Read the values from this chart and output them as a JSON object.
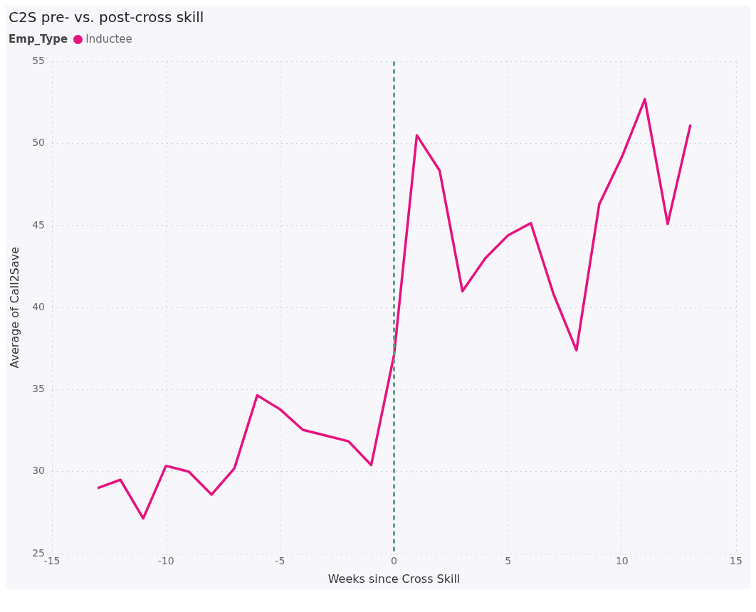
{
  "chart_data": {
    "type": "line",
    "title": "C2S pre- vs. post-cross skill",
    "xlabel": "Weeks since Cross Skill",
    "ylabel": "Average of Call2Save",
    "legend_title": "Emp_Type",
    "legend": "top left",
    "grid": true,
    "marker": "none",
    "line_style": "solid",
    "x": [
      -13,
      -12,
      -11,
      -10,
      -9,
      -8,
      -7,
      -6,
      -5,
      -4,
      -3,
      -2,
      -1,
      0,
      1,
      2,
      3,
      4,
      5,
      6,
      7,
      8,
      9,
      10,
      11,
      12,
      13
    ],
    "series": [
      {
        "name": "Inductee",
        "color": "#e6127f",
        "values": [
          29.0,
          29.5,
          27.15,
          30.35,
          30.0,
          28.6,
          30.2,
          34.65,
          33.8,
          32.55,
          32.2,
          31.85,
          30.4,
          37.1,
          50.5,
          48.35,
          41.0,
          43.0,
          44.4,
          45.15,
          40.8,
          37.4,
          46.3,
          49.2,
          52.7,
          45.1,
          51.15
        ]
      }
    ],
    "xlim": [
      -15,
      15
    ],
    "xticks": [
      -15,
      -10,
      -5,
      0,
      5,
      10,
      15
    ],
    "ylim": [
      25,
      55
    ],
    "yticks": [
      25,
      30,
      35,
      40,
      45,
      50,
      55
    ],
    "ref_lines": [
      {
        "axis": "x",
        "value": 0,
        "color": "#5f9e85",
        "line_style": "dashed"
      }
    ]
  }
}
